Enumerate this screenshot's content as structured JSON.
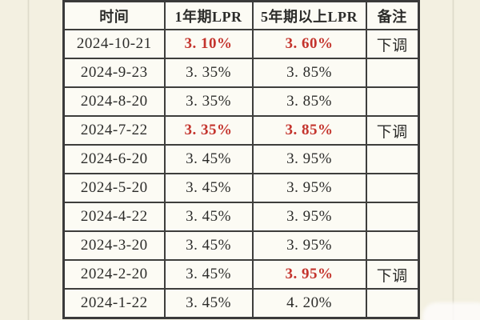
{
  "table": {
    "columns": [
      {
        "key": "date",
        "label": "时间"
      },
      {
        "key": "lpr1",
        "label": "1年期LPR"
      },
      {
        "key": "lpr5",
        "label": "5年期以上LPR"
      },
      {
        "key": "note",
        "label": "备注"
      }
    ],
    "rows": [
      {
        "date": "2024-10-21",
        "lpr1": "3. 10%",
        "lpr5": "3. 60%",
        "note": "下调",
        "red": [
          "lpr1",
          "lpr5"
        ]
      },
      {
        "date": "2024-9-23",
        "lpr1": "3. 35%",
        "lpr5": "3. 85%",
        "note": "",
        "red": []
      },
      {
        "date": "2024-8-20",
        "lpr1": "3. 35%",
        "lpr5": "3. 85%",
        "note": "",
        "red": []
      },
      {
        "date": "2024-7-22",
        "lpr1": "3. 35%",
        "lpr5": "3. 85%",
        "note": "下调",
        "red": [
          "lpr1",
          "lpr5"
        ]
      },
      {
        "date": "2024-6-20",
        "lpr1": "3. 45%",
        "lpr5": "3. 95%",
        "note": "",
        "red": []
      },
      {
        "date": "2024-5-20",
        "lpr1": "3. 45%",
        "lpr5": "3. 95%",
        "note": "",
        "red": []
      },
      {
        "date": "2024-4-22",
        "lpr1": "3. 45%",
        "lpr5": "3. 95%",
        "note": "",
        "red": []
      },
      {
        "date": "2024-3-20",
        "lpr1": "3. 45%",
        "lpr5": "3. 95%",
        "note": "",
        "red": []
      },
      {
        "date": "2024-2-20",
        "lpr1": "3. 45%",
        "lpr5": "3. 95%",
        "note": "下调",
        "red": [
          "lpr5"
        ]
      },
      {
        "date": "2024-1-22",
        "lpr1": "3. 45%",
        "lpr5": "4. 20%",
        "note": "",
        "red": []
      }
    ]
  },
  "colors": {
    "highlight_red": "#c4342d",
    "page_background": "#f3f0e1",
    "cell_background": "#fcfbf4",
    "grid_border": "#3e3e3c",
    "text": "#2c2c2a"
  }
}
